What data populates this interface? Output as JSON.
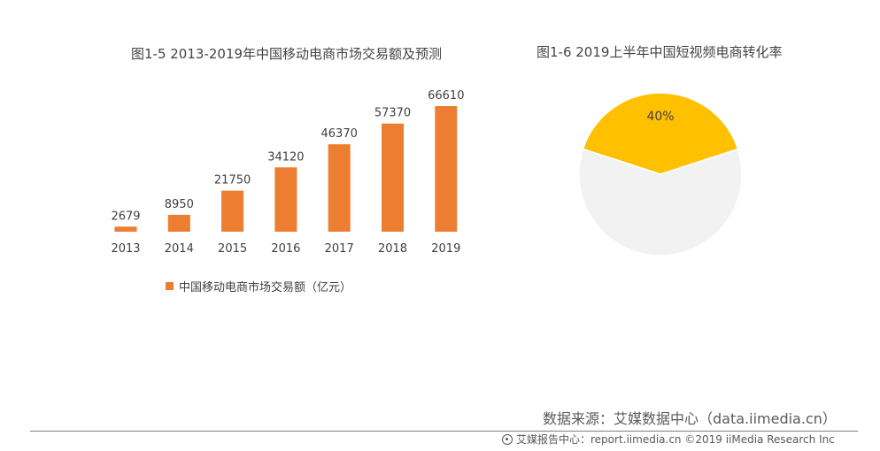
{
  "chart_data": [
    {
      "type": "bar",
      "title": "图1-5 2013-2019年中国移动电商市场交易额及预测",
      "categories": [
        "2013",
        "2014",
        "2015",
        "2016",
        "2017",
        "2018",
        "2019"
      ],
      "series": [
        {
          "name": "中国移动电商市场交易额（亿元）",
          "values": [
            2679,
            8950,
            21750,
            34120,
            46370,
            57370,
            66610
          ],
          "color": "#ED7D31"
        }
      ],
      "data_labels": [
        "2679",
        "8950",
        "21750",
        "34120",
        "46370",
        "57370",
        "66610"
      ],
      "ylim": [
        0,
        70000
      ],
      "grid": false,
      "legend": "bottom-left"
    },
    {
      "type": "pie",
      "title": "图1-6 2019上半年中国短视频电商转化率",
      "slices": [
        {
          "label": "40%",
          "value": 40,
          "color": "#FFC000"
        },
        {
          "label": "",
          "value": 60,
          "color": "#F2F2F2"
        }
      ]
    }
  ],
  "source": "数据来源：艾媒数据中心（data.iimedia.cn）",
  "footer": {
    "text": "艾媒报告中心：report.iimedia.cn ©2019 iiMedia Research Inc",
    "icon": "iimedia-logo-icon"
  }
}
